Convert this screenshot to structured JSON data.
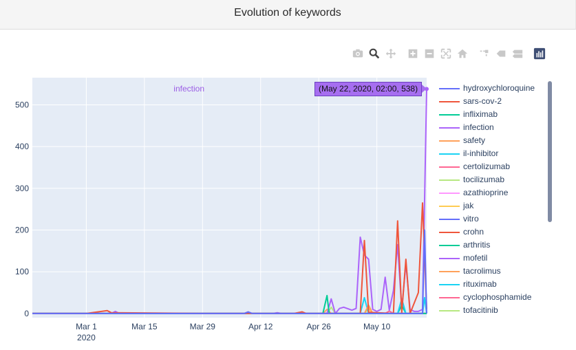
{
  "page": {
    "title": "Evolution of keywords"
  },
  "modebar": {
    "buttons": [
      "camera-icon",
      "zoom-icon",
      "pan-icon",
      "zoom-in-icon",
      "zoom-out-icon",
      "autoscale-icon",
      "home-icon",
      "spike-lines-icon",
      "hover-closest-icon",
      "hover-compare-icon",
      "plotly-logo-icon"
    ],
    "active_color": "#444444",
    "inactive_color": "#c8c8c8"
  },
  "tooltip": {
    "series": "infection",
    "text": "(May 22, 2020, 02:00, 538)"
  },
  "chart_data": {
    "type": "line",
    "title": "Evolution of keywords",
    "xlabel": "",
    "ylabel": "",
    "x_ticks": [
      {
        "label": "Mar 1",
        "sublabel": "2020",
        "date": "2020-03-01"
      },
      {
        "label": "Mar 15",
        "sublabel": "",
        "date": "2020-03-15"
      },
      {
        "label": "Mar 29",
        "sublabel": "",
        "date": "2020-03-29"
      },
      {
        "label": "Apr 12",
        "sublabel": "",
        "date": "2020-04-12"
      },
      {
        "label": "Apr 26",
        "sublabel": "",
        "date": "2020-04-26"
      },
      {
        "label": "May 10",
        "sublabel": "",
        "date": "2020-05-10"
      }
    ],
    "y_ticks": [
      0,
      100,
      200,
      300,
      400,
      500
    ],
    "xlim": [
      "2020-02-17",
      "2020-05-22"
    ],
    "ylim": [
      -10,
      565
    ],
    "grid": true,
    "legend_position": "right",
    "series": [
      {
        "name": "hydroxychloroquine",
        "color": "#636efa",
        "points": [
          [
            "2020-02-17",
            0
          ],
          [
            "2020-04-08",
            0
          ],
          [
            "2020-04-09",
            3
          ],
          [
            "2020-04-10",
            0
          ],
          [
            "2020-05-21",
            0
          ],
          [
            "2020-05-21T12:00",
            200
          ],
          [
            "2020-05-22",
            0
          ]
        ]
      },
      {
        "name": "sars-cov-2",
        "color": "#ef553b",
        "points": [
          [
            "2020-02-17",
            0
          ],
          [
            "2020-03-01",
            0
          ],
          [
            "2020-03-06",
            7
          ],
          [
            "2020-03-07",
            2
          ],
          [
            "2020-03-29",
            0
          ],
          [
            "2020-04-20",
            0
          ],
          [
            "2020-04-22",
            4
          ],
          [
            "2020-04-23",
            0
          ],
          [
            "2020-05-06",
            0
          ],
          [
            "2020-05-07",
            175
          ],
          [
            "2020-05-08",
            3
          ],
          [
            "2020-05-14",
            0
          ],
          [
            "2020-05-15",
            222
          ],
          [
            "2020-05-16",
            2
          ],
          [
            "2020-05-17",
            130
          ],
          [
            "2020-05-18",
            0
          ],
          [
            "2020-05-20",
            50
          ],
          [
            "2020-05-21",
            265
          ],
          [
            "2020-05-22",
            10
          ]
        ]
      },
      {
        "name": "infliximab",
        "color": "#00cc96",
        "points": [
          [
            "2020-02-17",
            0
          ],
          [
            "2020-04-27",
            0
          ],
          [
            "2020-04-28",
            43
          ],
          [
            "2020-04-28T12:00",
            0
          ],
          [
            "2020-05-22",
            0
          ]
        ]
      },
      {
        "name": "infection",
        "color": "#ab63fa",
        "points": [
          [
            "2020-02-17",
            0
          ],
          [
            "2020-03-07",
            0
          ],
          [
            "2020-03-08",
            5
          ],
          [
            "2020-03-09",
            0
          ],
          [
            "2020-04-08",
            0
          ],
          [
            "2020-04-09",
            3
          ],
          [
            "2020-04-10",
            0
          ],
          [
            "2020-04-15",
            0
          ],
          [
            "2020-04-16",
            2
          ],
          [
            "2020-04-17",
            0
          ],
          [
            "2020-04-28",
            0
          ],
          [
            "2020-04-29",
            35
          ],
          [
            "2020-04-30",
            0
          ],
          [
            "2020-05-01",
            12
          ],
          [
            "2020-05-02",
            15
          ],
          [
            "2020-05-04",
            8
          ],
          [
            "2020-05-05",
            12
          ],
          [
            "2020-05-06",
            183
          ],
          [
            "2020-05-07",
            140
          ],
          [
            "2020-05-08",
            130
          ],
          [
            "2020-05-09",
            10
          ],
          [
            "2020-05-10",
            5
          ],
          [
            "2020-05-11",
            10
          ],
          [
            "2020-05-12",
            87
          ],
          [
            "2020-05-13",
            8
          ],
          [
            "2020-05-14",
            55
          ],
          [
            "2020-05-15",
            165
          ],
          [
            "2020-05-16",
            10
          ],
          [
            "2020-05-17",
            120
          ],
          [
            "2020-05-18",
            10
          ],
          [
            "2020-05-19",
            5
          ],
          [
            "2020-05-20",
            5
          ],
          [
            "2020-05-21",
            10
          ],
          [
            "2020-05-22",
            538
          ]
        ]
      },
      {
        "name": "safety",
        "color": "#ffa15a",
        "points": [
          [
            "2020-02-17",
            0
          ],
          [
            "2020-04-27",
            0
          ],
          [
            "2020-04-28",
            10
          ],
          [
            "2020-04-29",
            0
          ],
          [
            "2020-05-07",
            0
          ],
          [
            "2020-05-08",
            20
          ],
          [
            "2020-05-09",
            0
          ],
          [
            "2020-05-22",
            0
          ]
        ]
      },
      {
        "name": "il-inhibitor",
        "color": "#19d3f3",
        "points": [
          [
            "2020-02-17",
            0
          ],
          [
            "2020-05-06",
            0
          ],
          [
            "2020-05-07",
            38
          ],
          [
            "2020-05-08",
            0
          ],
          [
            "2020-05-15",
            0
          ],
          [
            "2020-05-16",
            35
          ],
          [
            "2020-05-17",
            0
          ],
          [
            "2020-05-21",
            0
          ],
          [
            "2020-05-21T12:00",
            38
          ],
          [
            "2020-05-22",
            0
          ]
        ]
      },
      {
        "name": "certolizumab",
        "color": "#ff6692",
        "points": [
          [
            "2020-02-17",
            0
          ],
          [
            "2020-05-12",
            0
          ],
          [
            "2020-05-13",
            6
          ],
          [
            "2020-05-14",
            0
          ],
          [
            "2020-05-22",
            0
          ]
        ]
      },
      {
        "name": "tocilizumab",
        "color": "#b6e880",
        "points": [
          [
            "2020-02-17",
            0
          ],
          [
            "2020-04-28",
            0
          ],
          [
            "2020-04-29",
            15
          ],
          [
            "2020-04-30",
            0
          ],
          [
            "2020-05-22",
            0
          ]
        ]
      },
      {
        "name": "azathioprine",
        "color": "#ff97ff",
        "points": [
          [
            "2020-02-17",
            0
          ],
          [
            "2020-05-22",
            0
          ]
        ]
      },
      {
        "name": "jak",
        "color": "#fecb52",
        "points": [
          [
            "2020-02-17",
            0
          ],
          [
            "2020-05-07",
            0
          ],
          [
            "2020-05-08",
            12
          ],
          [
            "2020-05-09",
            0
          ],
          [
            "2020-05-22",
            0
          ]
        ]
      },
      {
        "name": "vitro",
        "color": "#636efa",
        "points": [
          [
            "2020-02-17",
            0
          ],
          [
            "2020-04-08",
            0
          ],
          [
            "2020-04-09",
            4
          ],
          [
            "2020-04-10",
            0
          ],
          [
            "2020-05-22",
            0
          ]
        ]
      },
      {
        "name": "crohn",
        "color": "#ef553b",
        "points": [
          [
            "2020-02-17",
            0
          ],
          [
            "2020-05-22",
            0
          ]
        ]
      },
      {
        "name": "arthritis",
        "color": "#00cc96",
        "points": [
          [
            "2020-02-17",
            0
          ],
          [
            "2020-05-15",
            0
          ],
          [
            "2020-05-16",
            20
          ],
          [
            "2020-05-17",
            0
          ],
          [
            "2020-05-22",
            0
          ]
        ]
      },
      {
        "name": "mofetil",
        "color": "#ab63fa",
        "points": [
          [
            "2020-02-17",
            0
          ],
          [
            "2020-05-22",
            0
          ]
        ]
      },
      {
        "name": "tacrolimus",
        "color": "#ffa15a",
        "points": [
          [
            "2020-02-17",
            0
          ],
          [
            "2020-05-22",
            0
          ]
        ]
      },
      {
        "name": "rituximab",
        "color": "#19d3f3",
        "points": [
          [
            "2020-02-17",
            0
          ],
          [
            "2020-05-22",
            0
          ]
        ]
      },
      {
        "name": "cyclophosphamide",
        "color": "#ff6692",
        "points": [
          [
            "2020-02-17",
            0
          ],
          [
            "2020-05-22",
            0
          ]
        ]
      },
      {
        "name": "tofacitinib",
        "color": "#b6e880",
        "points": [
          [
            "2020-02-17",
            0
          ],
          [
            "2020-05-22",
            0
          ]
        ]
      }
    ]
  }
}
